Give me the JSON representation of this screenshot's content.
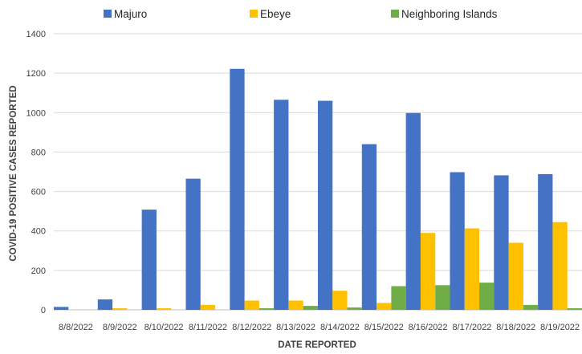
{
  "chart_data": {
    "type": "bar",
    "title": "",
    "xlabel": "DATE REPORTED",
    "ylabel": "COVID-19  POSITIVE CASES REPORTED",
    "ylim": [
      0,
      1400
    ],
    "yticks": [
      0,
      200,
      400,
      600,
      800,
      1000,
      1200,
      1400
    ],
    "grid": true,
    "legend_position": "top",
    "categories": [
      "8/8/2022",
      "8/9/2022",
      "8/10/2022",
      "8/11/2022",
      "8/12/2022",
      "8/13/2022",
      "8/14/2022",
      "8/15/2022",
      "8/16/2022",
      "8/17/2022",
      "8/18/2022",
      "8/19/2022"
    ],
    "series": [
      {
        "name": "Majuro",
        "color": "#4472c4",
        "values": [
          15,
          53,
          508,
          665,
          1222,
          1065,
          1060,
          840,
          998,
          698,
          682,
          688
        ]
      },
      {
        "name": "Ebeye",
        "color": "#ffc000",
        "values": [
          0,
          8,
          8,
          25,
          47,
          47,
          97,
          35,
          390,
          413,
          340,
          445
        ]
      },
      {
        "name": "Neighboring Islands",
        "color": "#70ad47",
        "values": [
          0,
          0,
          0,
          0,
          8,
          20,
          12,
          120,
          125,
          138,
          25,
          8
        ]
      }
    ]
  }
}
